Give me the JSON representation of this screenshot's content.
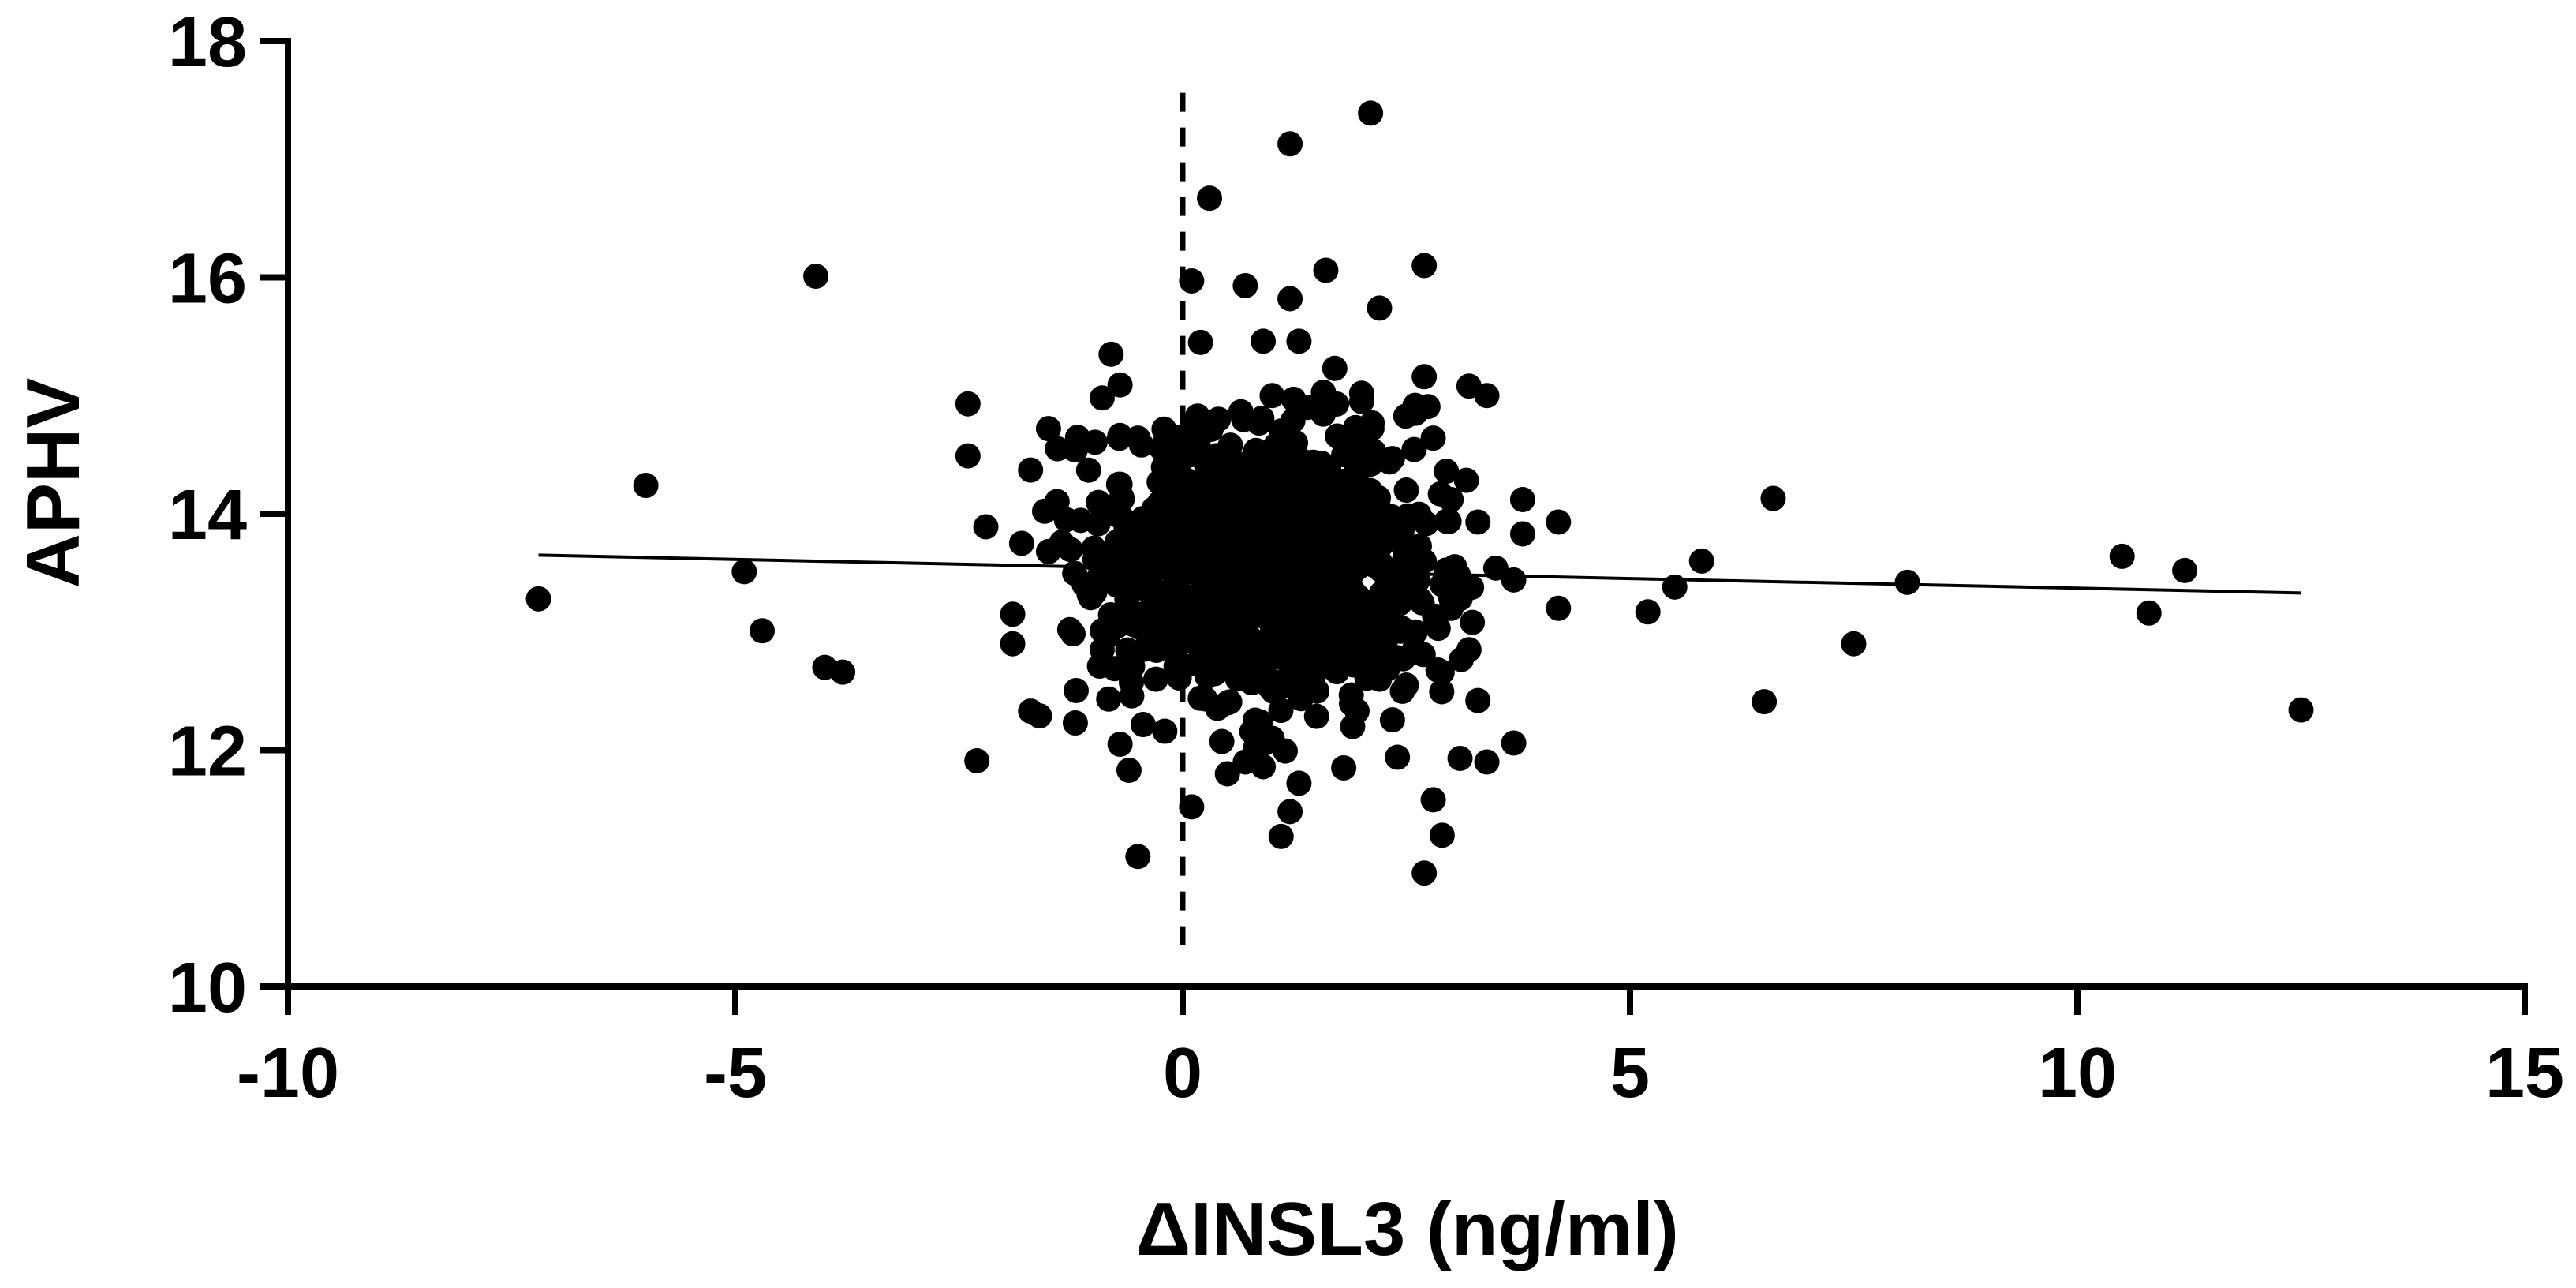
{
  "chart_data": {
    "type": "scatter",
    "title": "",
    "xlabel": "ΔINSL3 (ng/ml)",
    "ylabel": "APHV",
    "xlim": [
      -10,
      15
    ],
    "ylim": [
      10,
      18
    ],
    "x_ticks": [
      -10,
      -5,
      0,
      5,
      10,
      15
    ],
    "y_ticks": [
      10,
      12,
      14,
      16,
      18
    ],
    "x_tick_labels": [
      "-10",
      "-5",
      "0",
      "5",
      "10",
      "15"
    ],
    "y_tick_labels": [
      "10",
      "12",
      "14",
      "16",
      "18"
    ],
    "grid": false,
    "legend": "none",
    "marker_color": "#000000",
    "reference_line": {
      "x": 0,
      "style": "dashed",
      "y_range": [
        10.35,
        17.65
      ]
    },
    "regression_line": {
      "x": [
        -7.2,
        12.5
      ],
      "y": [
        13.65,
        13.33
      ]
    },
    "series": [
      {
        "points": [
          [
            -7.2,
            13.28
          ],
          [
            -6.0,
            14.24
          ],
          [
            -4.9,
            13.51
          ],
          [
            -4.7,
            13.01
          ],
          [
            -4.1,
            16.01
          ],
          [
            -4.0,
            12.7
          ],
          [
            -3.8,
            12.66
          ],
          [
            -2.4,
            14.93
          ],
          [
            -2.4,
            14.49
          ],
          [
            -2.2,
            13.89
          ],
          [
            -2.3,
            11.91
          ],
          [
            -1.8,
            13.75
          ],
          [
            -1.9,
            12.9
          ],
          [
            -1.7,
            12.33
          ],
          [
            -1.6,
            12.29
          ],
          [
            -1.9,
            13.15
          ],
          [
            -1.7,
            14.37
          ],
          [
            -1.5,
            14.72
          ],
          [
            -1.4,
            14.55
          ],
          [
            -1.2,
            14.54
          ],
          [
            -1.5,
            13.68
          ],
          [
            -1.3,
            13.95
          ],
          [
            -1.1,
            13.4
          ],
          [
            -1.2,
            12.23
          ],
          [
            -0.8,
            15.35
          ],
          [
            -0.7,
            15.09
          ],
          [
            -0.9,
            14.98
          ],
          [
            -0.5,
            14.64
          ],
          [
            -0.7,
            14.25
          ],
          [
            -0.9,
            12.85
          ],
          [
            -0.7,
            12.05
          ],
          [
            -0.6,
            11.83
          ],
          [
            -0.5,
            11.1
          ],
          [
            -0.3,
            12.6
          ],
          [
            0.1,
            11.52
          ],
          [
            -0.2,
            12.16
          ],
          [
            -0.3,
            13.2
          ],
          [
            -0.1,
            13.6
          ],
          [
            -0.2,
            14.6
          ],
          [
            0.1,
            15.97
          ],
          [
            0.2,
            15.45
          ],
          [
            0.3,
            16.67
          ],
          [
            0.4,
            14.8
          ],
          [
            0.5,
            14.2
          ],
          [
            0.3,
            13.9
          ],
          [
            0.6,
            13.4
          ],
          [
            0.4,
            12.9
          ],
          [
            0.5,
            12.4
          ],
          [
            0.7,
            11.9
          ],
          [
            0.5,
            11.8
          ],
          [
            0.7,
            15.93
          ],
          [
            0.9,
            15.46
          ],
          [
            1.0,
            15.0
          ],
          [
            1.1,
            14.7
          ],
          [
            0.8,
            14.0
          ],
          [
            0.9,
            13.5
          ],
          [
            1.1,
            13.2
          ],
          [
            0.8,
            12.7
          ],
          [
            1.0,
            12.1
          ],
          [
            0.9,
            11.86
          ],
          [
            1.1,
            11.27
          ],
          [
            1.2,
            17.13
          ],
          [
            1.2,
            15.82
          ],
          [
            1.3,
            15.46
          ],
          [
            1.4,
            14.9
          ],
          [
            1.3,
            14.3
          ],
          [
            1.5,
            13.7
          ],
          [
            1.4,
            13.1
          ],
          [
            1.5,
            12.5
          ],
          [
            1.3,
            11.72
          ],
          [
            1.2,
            11.48
          ],
          [
            1.6,
            16.06
          ],
          [
            1.7,
            15.23
          ],
          [
            1.8,
            14.5
          ],
          [
            1.7,
            13.9
          ],
          [
            1.9,
            13.35
          ],
          [
            1.8,
            12.95
          ],
          [
            1.9,
            12.2
          ],
          [
            1.8,
            11.85
          ],
          [
            2.0,
            14.95
          ],
          [
            2.1,
            17.39
          ],
          [
            2.2,
            15.74
          ],
          [
            2.0,
            15.02
          ],
          [
            2.1,
            14.42
          ],
          [
            2.2,
            13.8
          ],
          [
            2.3,
            13.1
          ],
          [
            2.2,
            12.6
          ],
          [
            2.4,
            11.94
          ],
          [
            2.6,
            14.85
          ],
          [
            2.7,
            16.1
          ],
          [
            2.7,
            15.16
          ],
          [
            2.8,
            14.64
          ],
          [
            2.5,
            14.2
          ],
          [
            2.7,
            13.6
          ],
          [
            2.6,
            13.0
          ],
          [
            2.5,
            12.55
          ],
          [
            2.8,
            11.58
          ],
          [
            2.7,
            10.96
          ],
          [
            2.9,
            11.28
          ],
          [
            2.9,
            12.66
          ],
          [
            2.9,
            13.4
          ],
          [
            3.0,
            13.2
          ],
          [
            3.0,
            14.12
          ],
          [
            3.1,
            11.93
          ],
          [
            3.2,
            15.08
          ],
          [
            3.2,
            12.85
          ],
          [
            3.3,
            13.93
          ],
          [
            3.3,
            12.42
          ],
          [
            3.4,
            11.9
          ],
          [
            3.4,
            15.0
          ],
          [
            3.5,
            13.54
          ],
          [
            3.7,
            12.06
          ],
          [
            3.7,
            13.44
          ],
          [
            3.8,
            14.12
          ],
          [
            3.8,
            13.83
          ],
          [
            4.2,
            13.2
          ],
          [
            4.2,
            13.93
          ],
          [
            5.2,
            13.17
          ],
          [
            5.5,
            13.38
          ],
          [
            5.8,
            13.6
          ],
          [
            6.5,
            12.41
          ],
          [
            6.6,
            14.13
          ],
          [
            7.5,
            12.9
          ],
          [
            8.1,
            13.42
          ],
          [
            10.5,
            13.64
          ],
          [
            10.8,
            13.16
          ],
          [
            11.2,
            13.52
          ],
          [
            12.5,
            12.34
          ]
        ]
      }
    ]
  }
}
